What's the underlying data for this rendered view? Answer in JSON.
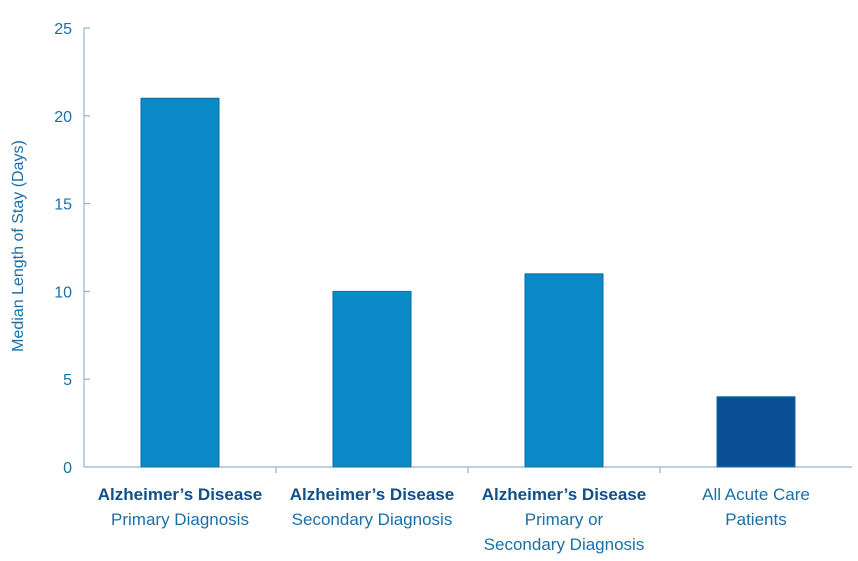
{
  "chart_data": {
    "type": "bar",
    "title": "",
    "ylabel": "Median Length of Stay (Days)",
    "xlabel": "",
    "ylim": [
      0,
      25
    ],
    "yticks": [
      0,
      5,
      10,
      15,
      20,
      25
    ],
    "grid": false,
    "categories": [
      {
        "bold": "Alzheimer’s Disease",
        "lines": [
          "Primary Diagnosis"
        ]
      },
      {
        "bold": "Alzheimer’s Disease",
        "lines": [
          "Secondary Diagnosis"
        ]
      },
      {
        "bold": "Alzheimer’s Disease",
        "lines": [
          "Primary or",
          "Secondary Diagnosis"
        ]
      },
      {
        "bold": "",
        "lines": [
          "All Acute Care",
          "Patients"
        ]
      }
    ],
    "values": [
      21,
      10,
      11,
      4
    ],
    "colors": [
      "#0a8bc7",
      "#0a8bc7",
      "#0a8bc7",
      "#0b4f96"
    ],
    "bar_border": "#0c6fa6"
  }
}
